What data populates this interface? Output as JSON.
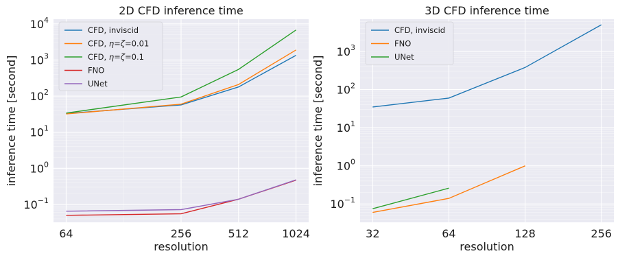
{
  "chart_data": [
    {
      "type": "line",
      "title": "2D CFD inference time",
      "xlabel": "resolution",
      "ylabel": "inference time [second]",
      "x_scale": "log2",
      "y_scale": "log10",
      "x": [
        64,
        256,
        512,
        1024
      ],
      "x_ticks": [
        "64",
        "256",
        "512",
        "1024"
      ],
      "y_ticks": [
        {
          "value": 0.1,
          "base": "10",
          "exp": "−1"
        },
        {
          "value": 1,
          "base": "10",
          "exp": "0"
        },
        {
          "value": 10,
          "base": "10",
          "exp": "1"
        },
        {
          "value": 100,
          "base": "10",
          "exp": "2"
        },
        {
          "value": 1000,
          "base": "10",
          "exp": "3"
        },
        {
          "value": 10000,
          "base": "10",
          "exp": "4"
        }
      ],
      "ylim": [
        0.032,
        13500
      ],
      "grid": true,
      "legend_position": "top-left",
      "series": [
        {
          "name": "CFD, inviscid",
          "color": "#1f77b4",
          "values": [
            33,
            57,
            180,
            1350
          ]
        },
        {
          "name_parts": [
            "CFD, ",
            "η",
            "=",
            "ζ",
            "=0.01"
          ],
          "color": "#ff7f0e",
          "values": [
            32,
            60,
            210,
            1900
          ]
        },
        {
          "name_parts": [
            "CFD, ",
            "η",
            "=",
            "ζ",
            "=0.1"
          ],
          "color": "#2ca02c",
          "values": [
            34,
            95,
            550,
            6800
          ]
        },
        {
          "name": "FNO",
          "color": "#d62728",
          "values": [
            0.05,
            0.055,
            0.14,
            0.47
          ]
        },
        {
          "name": "UNet",
          "color": "#9467bd",
          "values": [
            0.065,
            0.072,
            0.14,
            0.48
          ]
        }
      ]
    },
    {
      "type": "line",
      "title": "3D CFD inference time",
      "xlabel": "resolution",
      "ylabel": "inference time [second]",
      "x_scale": "log2",
      "y_scale": "log10",
      "x": [
        32,
        64,
        128,
        256
      ],
      "x_ticks": [
        "32",
        "64",
        "128",
        "256"
      ],
      "y_ticks": [
        {
          "value": 0.1,
          "base": "10",
          "exp": "−1"
        },
        {
          "value": 1,
          "base": "10",
          "exp": "0"
        },
        {
          "value": 10,
          "base": "10",
          "exp": "1"
        },
        {
          "value": 100,
          "base": "10",
          "exp": "2"
        },
        {
          "value": 1000,
          "base": "10",
          "exp": "3"
        }
      ],
      "ylim": [
        0.033,
        7000
      ],
      "grid": true,
      "legend_position": "top-left",
      "series": [
        {
          "name": "CFD, inviscid",
          "color": "#1f77b4",
          "x": [
            32,
            64,
            128,
            256
          ],
          "values": [
            35,
            60,
            380,
            5000
          ]
        },
        {
          "name": "FNO",
          "color": "#ff7f0e",
          "x": [
            32,
            64,
            128
          ],
          "values": [
            0.06,
            0.14,
            1.0
          ]
        },
        {
          "name": "UNet",
          "color": "#2ca02c",
          "x": [
            32,
            64
          ],
          "values": [
            0.075,
            0.26
          ]
        }
      ]
    }
  ]
}
